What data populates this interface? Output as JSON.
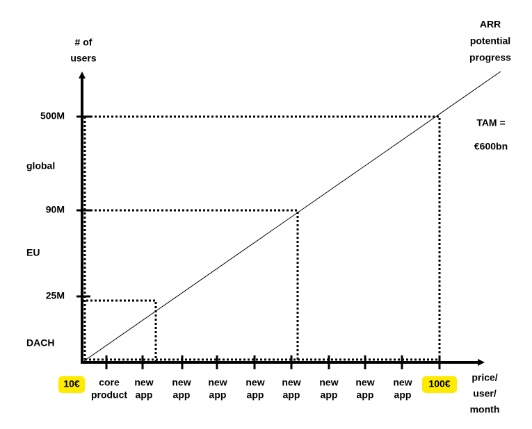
{
  "y_axis": {
    "title": [
      "# of",
      "users"
    ],
    "ticks": [
      "500M",
      "90M",
      "25M"
    ],
    "regions": [
      "global",
      "EU",
      "DACH"
    ]
  },
  "x_axis": {
    "start": "10€",
    "end": "100€",
    "ticks": [
      [
        "core",
        "product"
      ],
      [
        "new",
        "app"
      ],
      [
        "new",
        "app"
      ],
      [
        "new",
        "app"
      ],
      [
        "new",
        "app"
      ],
      [
        "new",
        "app"
      ],
      [
        "new",
        "app"
      ],
      [
        "new",
        "app"
      ],
      [
        "new",
        "app"
      ]
    ],
    "title": [
      "price/",
      "user/",
      "month"
    ]
  },
  "line_label": [
    "ARR",
    "potential",
    "progress"
  ],
  "tam": [
    "TAM =",
    "€600bn"
  ]
}
